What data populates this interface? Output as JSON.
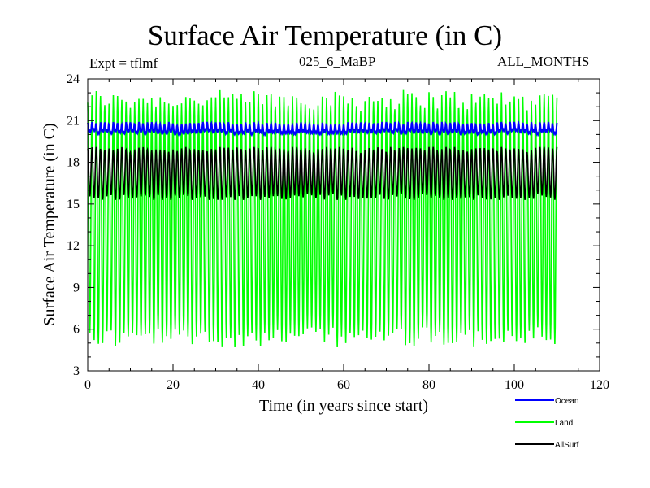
{
  "chart_data": {
    "type": "line",
    "title": "Surface Air Temperature (in C)",
    "subtitle_left": "Expt = tflmf",
    "subtitle_center": "025_6_MaBP",
    "subtitle_right": "ALL_MONTHS",
    "xlabel": "Time (in years since start)",
    "ylabel": "Surface Air Temperature (in C)",
    "xlim": [
      0,
      120
    ],
    "ylim": [
      3,
      24
    ],
    "xticks": [
      0,
      20,
      40,
      60,
      80,
      100,
      120
    ],
    "yticks": [
      3,
      6,
      9,
      12,
      15,
      18,
      21,
      24
    ],
    "grid": false,
    "legend_position": "bottom-right, below plot",
    "time_range_years": [
      0,
      110
    ],
    "cycle": "annual (12 monthly values per year)",
    "series": [
      {
        "name": "Ocean",
        "color": "#0000ff",
        "min": 19.8,
        "max": 20.9,
        "mean": 20.3
      },
      {
        "name": "Land",
        "color": "#00ff00",
        "min": 4.7,
        "max": 23.2,
        "mean": 14.2
      },
      {
        "name": "AllSurf",
        "color": "#000000",
        "min": 15.3,
        "max": 19.1,
        "mean": 17.3
      }
    ]
  }
}
